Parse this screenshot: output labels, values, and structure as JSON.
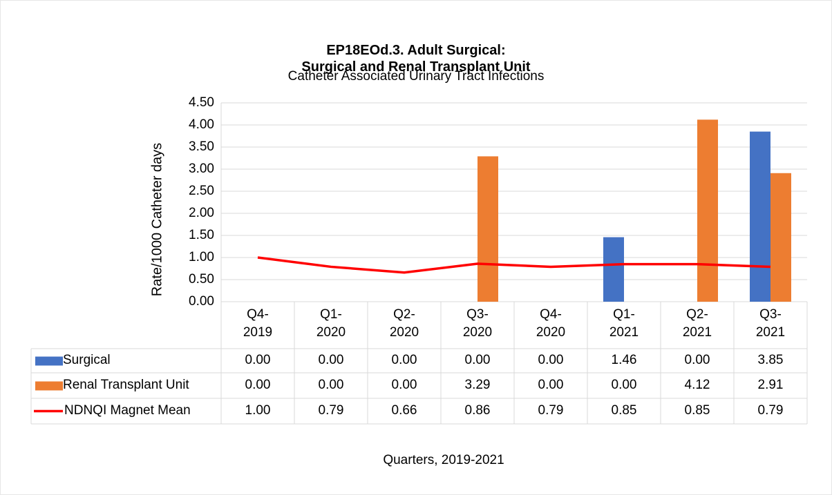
{
  "chart_data": {
    "type": "bar",
    "title": [
      "EP18EOd.3. Adult Surgical:",
      "Surgical and Renal Transplant Unit"
    ],
    "subtitle": "Catheter Associated Urinary Tract Infections",
    "ylabel": "Rate/1000 Catheter days",
    "xlabel": "Quarters, 2019-2021",
    "categories": [
      "Q4-2019",
      "Q1-2020",
      "Q2-2020",
      "Q3-2020",
      "Q4-2020",
      "Q1-2021",
      "Q2-2021",
      "Q3-2021"
    ],
    "ylim": [
      0,
      4.5
    ],
    "yticks": [
      {
        "value": 0,
        "label": "0.00"
      },
      {
        "value": 0.5,
        "label": "0.50"
      },
      {
        "value": 1,
        "label": "1.00"
      },
      {
        "value": 1.5,
        "label": "1.50"
      },
      {
        "value": 2,
        "label": "2.00"
      },
      {
        "value": 2.5,
        "label": "2.50"
      },
      {
        "value": 3,
        "label": "3.00"
      },
      {
        "value": 3.5,
        "label": "3.50"
      },
      {
        "value": 4,
        "label": "4.00"
      },
      {
        "value": 4.5,
        "label": "4.50"
      }
    ],
    "grid": true,
    "series": [
      {
        "name": "Surgical",
        "type": "bar",
        "color": "#4472c4",
        "values": [
          0,
          0,
          0,
          0,
          0,
          1.46,
          0,
          3.85
        ],
        "value_labels": [
          "0.00",
          "0.00",
          "0.00",
          "0.00",
          "0.00",
          "1.46",
          "0.00",
          "3.85"
        ]
      },
      {
        "name": "Renal Transplant Unit",
        "type": "bar",
        "color": "#ed7d31",
        "values": [
          0,
          0,
          0,
          3.29,
          0,
          0,
          4.12,
          2.91
        ],
        "value_labels": [
          "0.00",
          "0.00",
          "0.00",
          "3.29",
          "0.00",
          "0.00",
          "4.12",
          "2.91"
        ]
      },
      {
        "name": "NDNQI Magnet Mean",
        "type": "line",
        "color": "#ff0000",
        "values": [
          1,
          0.79,
          0.66,
          0.86,
          0.79,
          0.85,
          0.85,
          0.79
        ],
        "value_labels": [
          "1.00",
          "0.79",
          "0.66",
          "0.86",
          "0.79",
          "0.85",
          "0.85",
          "0.79"
        ]
      }
    ]
  }
}
